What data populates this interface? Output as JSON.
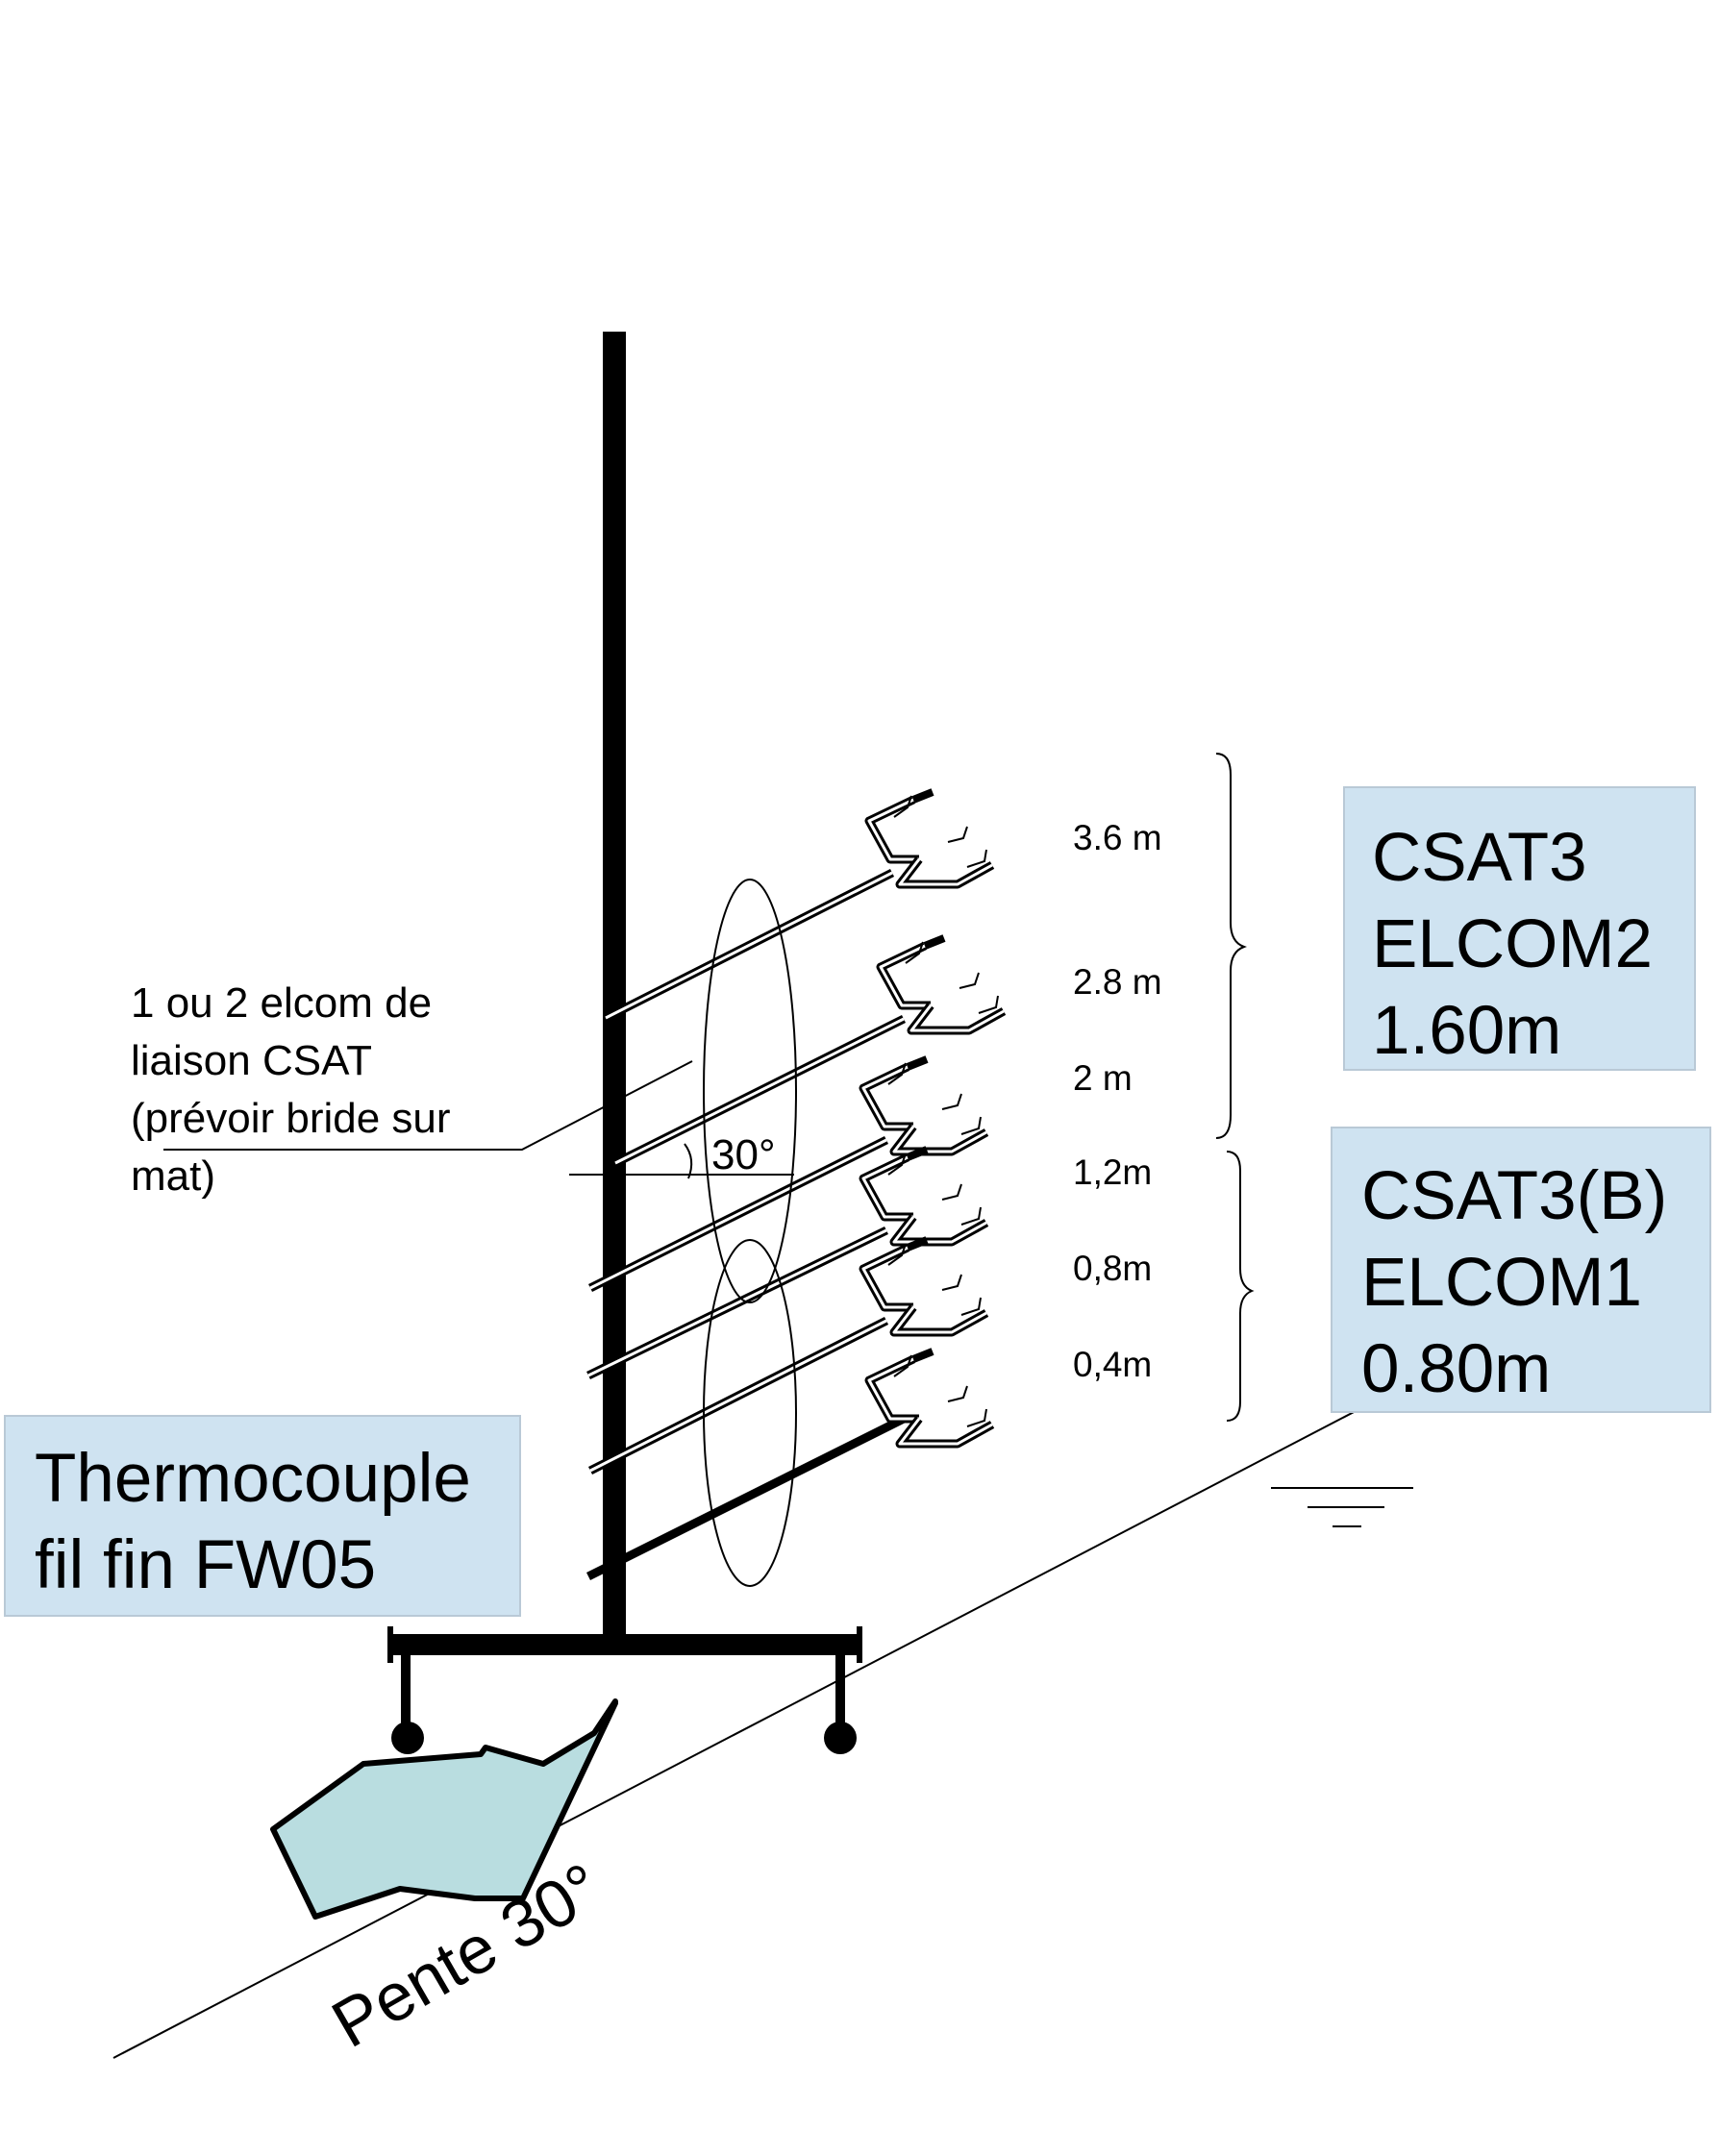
{
  "colors": {
    "ink": "#000000",
    "label_box_fill": "#cfe3f1",
    "label_box_border": "#b9c9d6",
    "rock_fill": "#b9dde0"
  },
  "annotations": {
    "elcom_note": [
      "1 ou 2 elcom de",
      "liaison CSAT",
      "(prévoir bride sur",
      "mat)"
    ],
    "angle_label": "30°",
    "slope_label": "Pente 30°"
  },
  "heights": [
    "3.6 m",
    "2.8 m",
    "2 m",
    "1,2m",
    "0,8m",
    "0,4m"
  ],
  "boxes": {
    "upper_group": [
      "CSAT3",
      "ELCOM2",
      "1.60m"
    ],
    "lower_group": [
      "CSAT3(B)",
      "ELCOM1",
      "0.80m"
    ],
    "thermocouple": [
      "Thermocouple",
      "fil fin FW05"
    ]
  },
  "icons": {
    "sensor": "thermocouple-sensor-icon",
    "ground": "ground-symbol-icon",
    "rock": "rock-icon",
    "mast": "mast-icon"
  }
}
